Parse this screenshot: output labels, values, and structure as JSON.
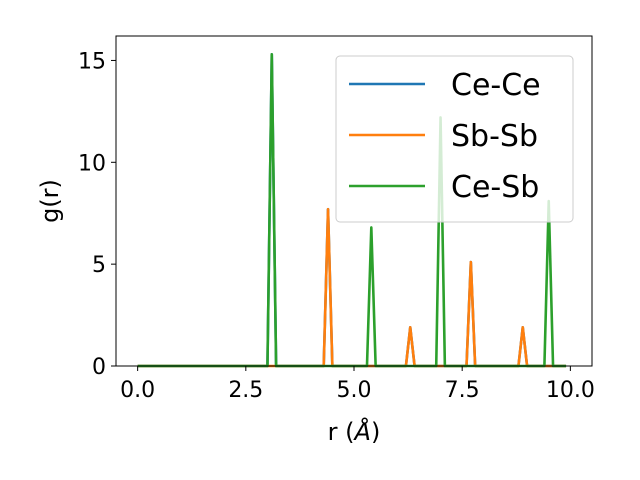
{
  "chart_data": {
    "type": "line",
    "xlabel": "r (",
    "xlabel_unit": "Å",
    "xlabel_close": ")",
    "ylabel": "g(r)",
    "xlim": [
      -0.5,
      10.5
    ],
    "ylim": [
      0,
      16.2
    ],
    "xticks": [
      0.0,
      2.5,
      5.0,
      7.5,
      10.0
    ],
    "xtick_labels": [
      "0.0",
      "2.5",
      "5.0",
      "7.5",
      "10.0"
    ],
    "yticks": [
      0,
      5,
      10,
      15
    ],
    "ytick_labels": [
      "0",
      "5",
      "10",
      "15"
    ],
    "grid": false,
    "legend_position": "top-right",
    "series": [
      {
        "name": "Ce-Ce",
        "color": "#1f77b4",
        "x": [
          0.0,
          3.0,
          3.1,
          3.2,
          4.3,
          4.4,
          4.5,
          6.2,
          6.3,
          6.4,
          7.6,
          7.7,
          7.8,
          8.8,
          8.9,
          9.0,
          9.9
        ],
        "y": [
          0,
          0,
          15.3,
          0,
          0,
          7.7,
          0,
          0,
          1.9,
          0,
          0,
          5.1,
          0,
          0,
          1.9,
          0,
          0
        ]
      },
      {
        "name": "Sb-Sb",
        "color": "#ff7f0e",
        "x": [
          0.0,
          4.3,
          4.4,
          4.5,
          6.2,
          6.3,
          6.4,
          7.6,
          7.7,
          7.8,
          8.8,
          8.9,
          9.0,
          9.9
        ],
        "y": [
          0,
          0,
          7.7,
          0,
          0,
          1.9,
          0,
          0,
          5.1,
          0,
          0,
          1.9,
          0,
          0
        ]
      },
      {
        "name": "Ce-Sb",
        "color": "#2ca02c",
        "x": [
          0.0,
          3.0,
          3.1,
          3.2,
          5.3,
          5.4,
          5.5,
          6.9,
          7.0,
          7.1,
          9.4,
          9.5,
          9.6,
          9.9
        ],
        "y": [
          0,
          0,
          15.3,
          0,
          0,
          6.8,
          0,
          0,
          12.2,
          0,
          0,
          8.1,
          0,
          0
        ]
      }
    ]
  }
}
